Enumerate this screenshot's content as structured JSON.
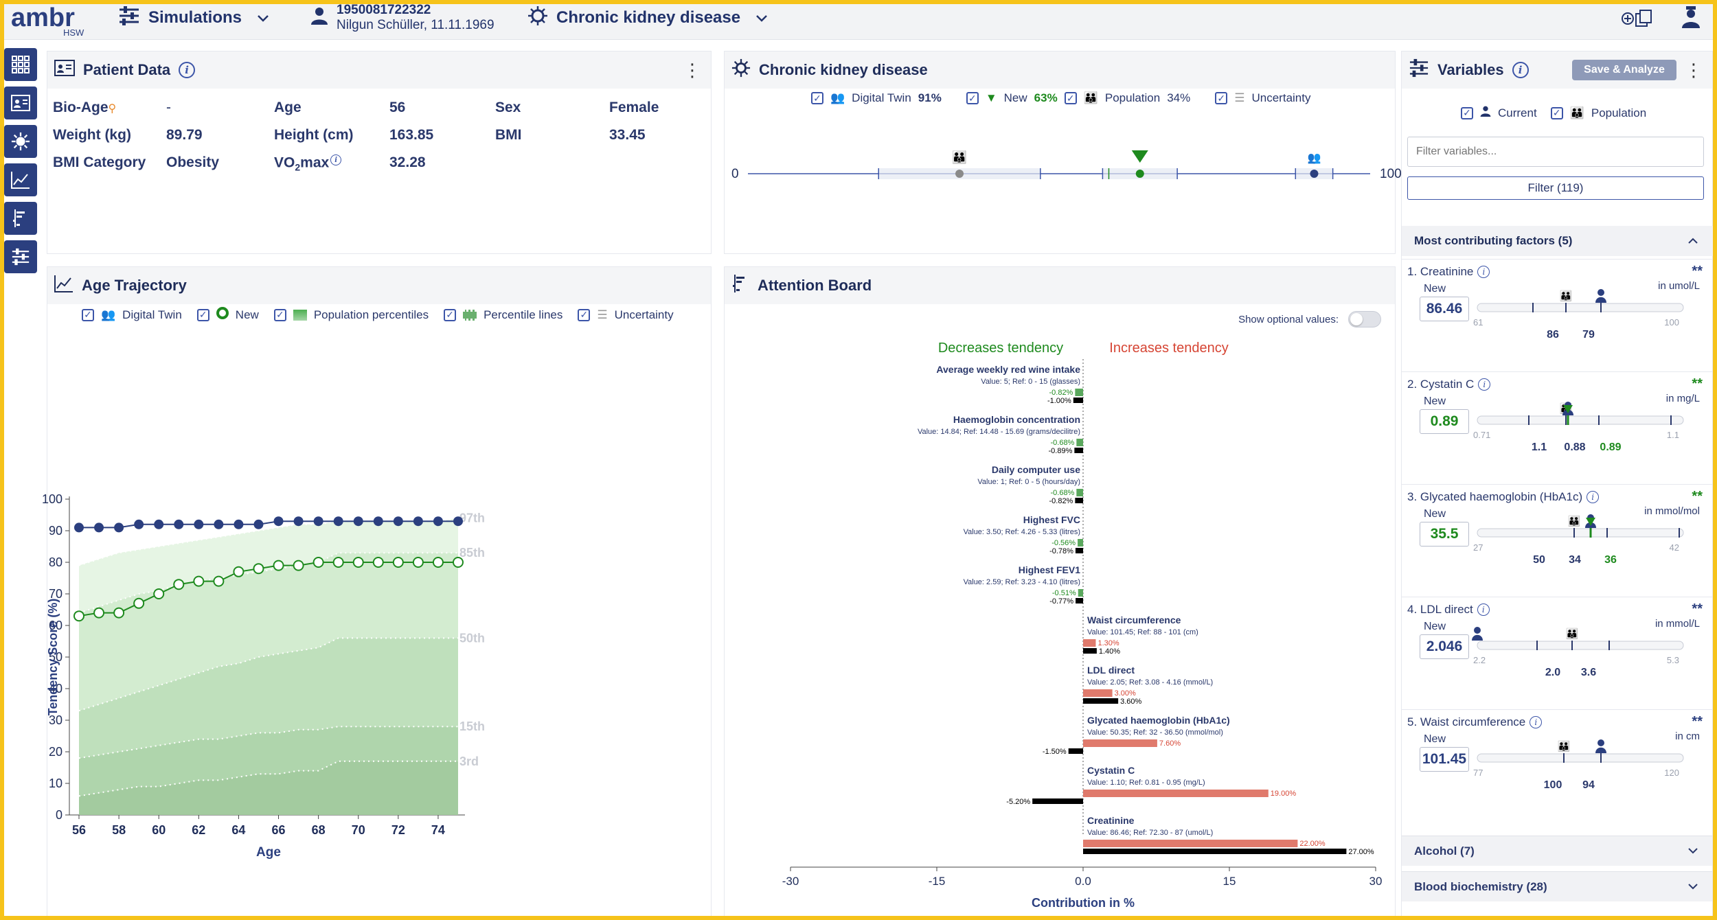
{
  "topbar": {
    "logo_text": "ambr",
    "logo_sub": "HSW",
    "simulations_label": "Simulations",
    "patient_id": "1950081722322",
    "patient_name": "Nilgun Schüller, 11.11.1969",
    "disease_label": "Chronic kidney disease"
  },
  "patient_data": {
    "title": "Patient Data",
    "fields": [
      {
        "label": "Bio-Age",
        "value": "-"
      },
      {
        "label": "Age",
        "value": "56"
      },
      {
        "label": "Sex",
        "value": "Female"
      },
      {
        "label": "Weight (kg)",
        "value": "89.79"
      },
      {
        "label": "Height (cm)",
        "value": "163.85"
      },
      {
        "label": "BMI",
        "value": "33.45"
      },
      {
        "label": "BMI Category",
        "value": "Obesity"
      },
      {
        "label": "VO2max",
        "value": "32.28"
      }
    ]
  },
  "ckd_panel": {
    "title": "Chronic kidney disease",
    "legend": [
      {
        "label": "Digital Twin",
        "value": "91%"
      },
      {
        "label": "New",
        "value": "63%"
      },
      {
        "label": "Population",
        "value": "34%"
      },
      {
        "label": "Uncertainty",
        "value": ""
      }
    ],
    "scale_min": "0",
    "scale_max": "100",
    "twin_value": 91,
    "new_value": 63,
    "population_value": 34,
    "colors": {
      "twin": "#2b3f7f",
      "new": "#1e8a1e",
      "population": "#8a8a8a"
    }
  },
  "age_trajectory": {
    "title": "Age Trajectory",
    "legend": [
      "Digital Twin",
      "New",
      "Population percentiles",
      "Percentile lines",
      "Uncertainty"
    ]
  },
  "chart_data": {
    "type": "line",
    "xlabel": "Age",
    "ylabel": "Tendency Score (%)",
    "xlim": [
      56,
      75
    ],
    "ylim": [
      0,
      100
    ],
    "x_ticks": [
      "56",
      "58",
      "60",
      "62",
      "64",
      "66",
      "68",
      "70",
      "72",
      "74"
    ],
    "y_ticks": [
      "0",
      "10",
      "20",
      "30",
      "40",
      "50",
      "60",
      "70",
      "80",
      "90",
      "100"
    ],
    "x": [
      56,
      57,
      58,
      59,
      60,
      61,
      62,
      63,
      64,
      65,
      66,
      67,
      68,
      69,
      70,
      71,
      72,
      73,
      74,
      75
    ],
    "series": [
      {
        "name": "Digital Twin",
        "values": [
          91,
          91,
          91,
          92,
          92,
          92,
          92,
          92,
          92,
          92,
          93,
          93,
          93,
          93,
          93,
          93,
          93,
          93,
          93,
          93
        ]
      },
      {
        "name": "New",
        "values": [
          63,
          64,
          64,
          67,
          70,
          73,
          74,
          74,
          77,
          78,
          79,
          79,
          80,
          80,
          80,
          80,
          80,
          80,
          80,
          80
        ]
      }
    ],
    "percentiles": [
      {
        "label": "97th",
        "values": [
          79,
          81,
          83,
          84,
          85,
          86,
          87,
          88,
          89,
          90,
          91,
          92,
          92,
          93,
          93,
          93,
          93,
          93,
          93,
          94
        ]
      },
      {
        "label": "85th",
        "values": [
          64,
          66,
          68,
          70,
          71,
          73,
          74,
          75,
          76,
          77,
          78,
          79,
          80,
          83,
          83,
          83,
          83,
          83,
          83,
          83
        ]
      },
      {
        "label": "50th",
        "values": [
          33,
          35,
          37,
          39,
          41,
          43,
          45,
          47,
          48,
          50,
          51,
          52,
          53,
          56,
          56,
          56,
          56,
          56,
          56,
          56
        ]
      },
      {
        "label": "15th",
        "values": [
          18,
          19,
          20,
          21,
          22,
          23,
          24,
          24,
          25,
          26,
          26,
          27,
          27,
          28,
          28,
          28,
          28,
          28,
          28,
          28
        ]
      },
      {
        "label": "3rd",
        "values": [
          6,
          7,
          8,
          9,
          9,
          10,
          11,
          11,
          12,
          13,
          13,
          14,
          14,
          17,
          17,
          17,
          17,
          17,
          17,
          17
        ]
      }
    ]
  },
  "attention_board": {
    "title": "Attention Board",
    "show_optional": "Show optional values:",
    "decreases_label": "Decreases tendency",
    "increases_label": "Increases tendency",
    "xlabel": "Contribution in %",
    "x_ticks": [
      "-30",
      "-15",
      "0.0",
      "15",
      "30"
    ],
    "x_ticks_values": [
      -30,
      -15,
      0,
      15,
      30
    ],
    "items": [
      {
        "name": "Average weekly red wine intake",
        "detail": "Value: 5;   Ref: 0 - 15 (glasses)",
        "side": "left",
        "a": -0.82,
        "b": -1.0,
        "a_label": "-0.82%",
        "b_label": "-1.00%"
      },
      {
        "name": "Haemoglobin concentration",
        "detail": "Value: 14.84;   Ref: 14.48 - 15.69 (grams/decilitre)",
        "side": "left",
        "a": -0.68,
        "b": -0.89,
        "a_label": "-0.68%",
        "b_label": "-0.89%"
      },
      {
        "name": "Daily computer use",
        "detail": "Value: 1;   Ref: 0 - 5 (hours/day)",
        "side": "left",
        "a": -0.68,
        "b": -0.82,
        "a_label": "-0.68%",
        "b_label": "-0.82%"
      },
      {
        "name": "Highest FVC",
        "detail": "Value: 3.50;   Ref: 4.26 - 5.33 (litres)",
        "side": "left",
        "a": -0.56,
        "b": -0.78,
        "a_label": "-0.56%",
        "b_label": "-0.78%"
      },
      {
        "name": "Highest FEV1",
        "detail": "Value: 2.59;   Ref: 3.23 - 4.10 (litres)",
        "side": "left",
        "a": -0.51,
        "b": -0.77,
        "a_label": "-0.51%",
        "b_label": "-0.77%"
      },
      {
        "name": "Waist circumference",
        "detail": "Value: 101.45;   Ref: 88 - 101 (cm)",
        "side": "right",
        "a": 1.3,
        "b": 1.4,
        "a_label": "1.30%",
        "b_label": "1.40%"
      },
      {
        "name": "LDL direct",
        "detail": "Value: 2.05;   Ref: 3.08 - 4.16 (mmol/L)",
        "side": "right",
        "a": 3.0,
        "b": 3.6,
        "a_label": "3.00%",
        "b_label": "3.60%"
      },
      {
        "name": "Glycated haemoglobin (HbA1c)",
        "detail": "Value: 50.35;   Ref: 32 - 36.50 (mmol/mol)",
        "side": "right",
        "a": 7.6,
        "b": -1.5,
        "a_label": "7.60%",
        "b_label": "-1.50%"
      },
      {
        "name": "Cystatin C",
        "detail": "Value: 1.10;   Ref: 0.81 - 0.95 (mg/L)",
        "side": "right",
        "a": 19.0,
        "b": -5.2,
        "a_label": "19.00%",
        "b_label": "-5.20%"
      },
      {
        "name": "Creatinine",
        "detail": "Value: 86.46;   Ref: 72.30 - 87 (umol/L)",
        "side": "right",
        "a": 22.0,
        "b": 27.0,
        "a_label": "22.00%",
        "b_label": "27.00%"
      }
    ]
  },
  "variables": {
    "title": "Variables",
    "save_button": "Save & Analyze",
    "legend_current": "Current",
    "legend_population": "Population",
    "filter_placeholder": "Filter variables...",
    "filter_button": "Filter (119)",
    "section_title": "Most contributing factors (5)",
    "factors": [
      {
        "title": "1. Creatinine",
        "stars": "**",
        "star_color": "#2b3f7f",
        "new_label": "New",
        "value": "86.46",
        "value_color": "#2b3f7f",
        "unit": "in umol/L",
        "min": "61",
        "max": "100",
        "markers": [
          "86",
          "79"
        ],
        "marker_colors": [
          "#2a386b",
          "#2a386b"
        ]
      },
      {
        "title": "2. Cystatin C",
        "stars": "**",
        "star_color": "#1e8a1e",
        "new_label": "New",
        "value": "0.89",
        "value_color": "#1e8a1e",
        "unit": "in mg/L",
        "min": "0.71",
        "max": "1.1",
        "markers": [
          "1.1",
          "0.88",
          "0.89"
        ],
        "marker_colors": [
          "#2a386b",
          "#2a386b",
          "#1e8a1e"
        ]
      },
      {
        "title": "3. Glycated haemoglobin (HbA1c)",
        "stars": "**",
        "star_color": "#1e8a1e",
        "new_label": "New",
        "value": "35.5",
        "value_color": "#1e8a1e",
        "unit": "in mmol/mol",
        "min": "27",
        "max": "42",
        "markers": [
          "50",
          "34",
          "36"
        ],
        "marker_colors": [
          "#2a386b",
          "#2a386b",
          "#1e8a1e"
        ]
      },
      {
        "title": "4. LDL direct",
        "stars": "**",
        "star_color": "#2b3f7f",
        "new_label": "New",
        "value": "2.046",
        "value_color": "#2b3f7f",
        "unit": "in mmol/L",
        "min": "2.2",
        "max": "5.3",
        "markers": [
          "2.0",
          "3.6"
        ],
        "marker_colors": [
          "#2a386b",
          "#2a386b"
        ]
      },
      {
        "title": "5. Waist circumference",
        "stars": "**",
        "star_color": "#2b3f7f",
        "new_label": "New",
        "value": "101.45",
        "value_color": "#2b3f7f",
        "unit": "in cm",
        "min": "77",
        "max": "120",
        "markers": [
          "100",
          "94"
        ],
        "marker_colors": [
          "#2a386b",
          "#2a386b"
        ]
      }
    ],
    "accordions": [
      "Alcohol (7)",
      "Blood biochemistry (28)"
    ]
  }
}
